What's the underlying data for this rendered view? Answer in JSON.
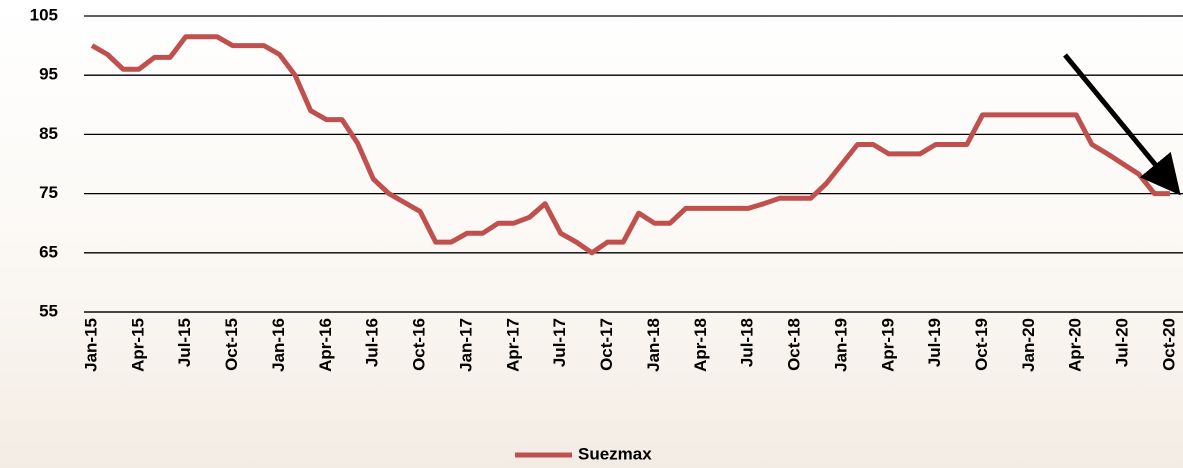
{
  "chart_data": {
    "type": "line",
    "categories": [
      "Jan-15",
      null,
      null,
      "Apr-15",
      null,
      null,
      "Jul-15",
      null,
      null,
      "Oct-15",
      null,
      null,
      "Jan-16",
      null,
      null,
      "Apr-16",
      null,
      null,
      "Jul-16",
      null,
      null,
      "Oct-16",
      null,
      null,
      "Jan-17",
      null,
      null,
      "Apr-17",
      null,
      null,
      "Jul-17",
      null,
      null,
      "Oct-17",
      null,
      null,
      "Jan-18",
      null,
      null,
      "Apr-18",
      null,
      null,
      "Jul-18",
      null,
      null,
      "Oct-18",
      null,
      null,
      "Jan-19",
      null,
      null,
      "Apr-19",
      null,
      null,
      "Jul-19",
      null,
      null,
      "Oct-19",
      null,
      null,
      "Jan-20",
      null,
      null,
      "Apr-20",
      null,
      null,
      "Jul-20",
      null,
      null,
      "Oct-20"
    ],
    "series": [
      {
        "name": "Suezmax",
        "color": "#c0504d",
        "values": [
          100,
          98.5,
          96,
          96,
          98,
          98,
          101.5,
          101.5,
          101.5,
          100,
          100,
          100,
          98.5,
          95,
          89,
          87.5,
          87.5,
          83.5,
          77.5,
          75,
          73.5,
          72,
          66.8,
          66.8,
          68.3,
          68.3,
          70,
          70,
          71,
          73.3,
          68.3,
          66.8,
          65,
          66.8,
          66.8,
          71.7,
          70,
          70,
          72.5,
          72.5,
          72.5,
          72.5,
          72.5,
          73.3,
          74.2,
          74.2,
          74.2,
          76.7,
          80,
          83.3,
          83.3,
          81.7,
          81.7,
          81.7,
          83.3,
          83.3,
          83.3,
          88.3,
          88.3,
          88.3,
          88.3,
          88.3,
          88.3,
          88.3,
          83.3,
          81.7,
          80,
          78.3,
          75,
          75
        ]
      }
    ],
    "ylim": [
      55,
      105
    ],
    "yticks": [
      55,
      65,
      75,
      85,
      95,
      105
    ],
    "grid": true,
    "legend": "bottom"
  }
}
